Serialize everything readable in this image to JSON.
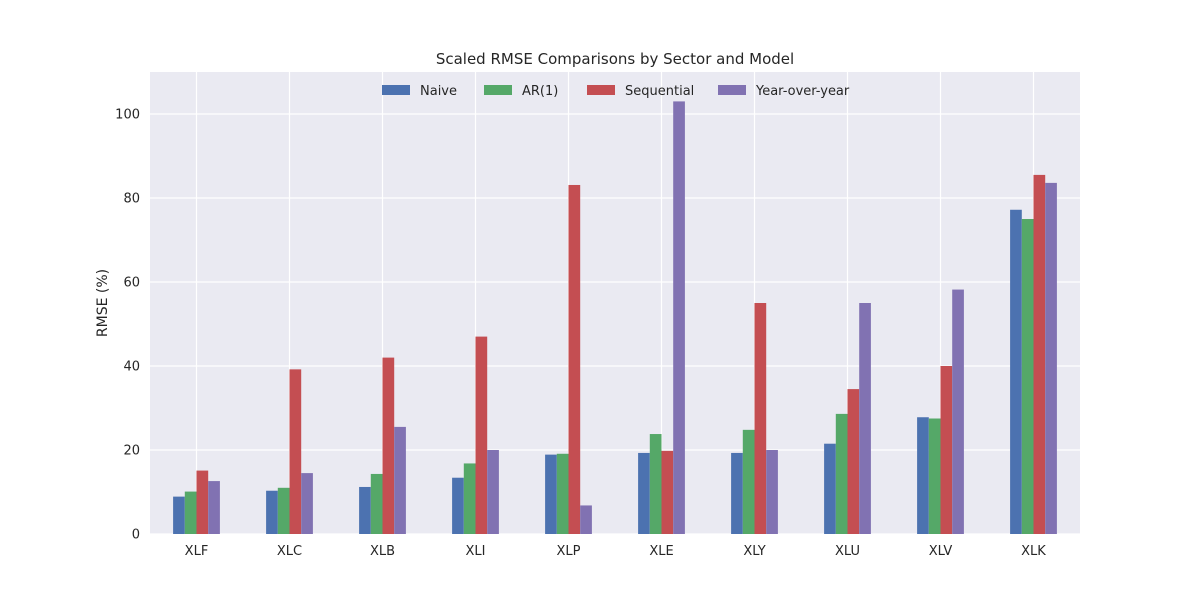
{
  "chart_data": {
    "type": "bar",
    "title": "Scaled RMSE Comparisons by Sector and Model",
    "xlabel": "",
    "ylabel": "RMSE (%)",
    "ylim": [
      0,
      110
    ],
    "yticks": [
      0,
      20,
      40,
      60,
      80,
      100
    ],
    "grid": true,
    "legend_position": "top-center",
    "background": "#eaeaf2",
    "categories": [
      "XLF",
      "XLC",
      "XLB",
      "XLI",
      "XLP",
      "XLE",
      "XLY",
      "XLU",
      "XLV",
      "XLK"
    ],
    "series": [
      {
        "name": "Naive",
        "color": "#4c72b0",
        "values": [
          8.9,
          10.3,
          11.2,
          13.4,
          18.9,
          19.3,
          19.3,
          21.5,
          27.8,
          77.2
        ]
      },
      {
        "name": "AR(1)",
        "color": "#55a868",
        "values": [
          10.1,
          11.0,
          14.3,
          16.8,
          19.1,
          23.8,
          24.8,
          28.6,
          27.5,
          75.0
        ]
      },
      {
        "name": "Sequential",
        "color": "#c44e52",
        "values": [
          15.1,
          39.2,
          42.0,
          47.0,
          83.1,
          19.8,
          55.0,
          34.5,
          40.0,
          85.5
        ]
      },
      {
        "name": "Year-over-year",
        "color": "#8172b2",
        "values": [
          12.6,
          14.5,
          25.5,
          20.0,
          6.8,
          103.0,
          20.0,
          55.0,
          58.2,
          83.6
        ]
      }
    ]
  }
}
